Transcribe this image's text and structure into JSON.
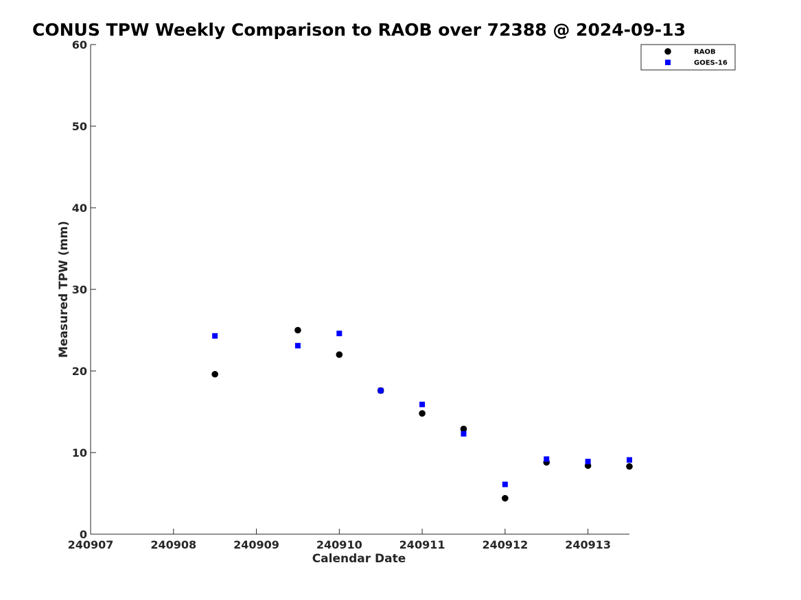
{
  "chart_data": {
    "type": "scatter",
    "title": "CONUS TPW Weekly Comparison to RAOB over 72388 @ 2024-09-13",
    "xlabel": "Calendar Date",
    "ylabel": "Measured TPW (mm)",
    "x_tick_labels": [
      "240907",
      "240908",
      "240909",
      "240910",
      "240911",
      "240912",
      "240913"
    ],
    "y_ticks": [
      0,
      10,
      20,
      30,
      40,
      50,
      60
    ],
    "xlim": [
      "2024-09-07 00:00",
      "2024-09-13 12:00"
    ],
    "ylim": [
      0,
      60
    ],
    "grid": false,
    "legend_position": "top-right",
    "series": [
      {
        "name": "RAOB",
        "marker": "circle",
        "color": "#000000",
        "points": [
          {
            "x": "2024-09-08 12:00",
            "y": 19.6
          },
          {
            "x": "2024-09-09 12:00",
            "y": 25.0
          },
          {
            "x": "2024-09-10 00:00",
            "y": 22.0
          },
          {
            "x": "2024-09-10 12:00",
            "y": 17.6
          },
          {
            "x": "2024-09-11 00:00",
            "y": 14.8
          },
          {
            "x": "2024-09-11 12:00",
            "y": 12.9
          },
          {
            "x": "2024-09-12 00:00",
            "y": 4.4
          },
          {
            "x": "2024-09-12 12:00",
            "y": 8.8
          },
          {
            "x": "2024-09-13 00:00",
            "y": 8.4
          },
          {
            "x": "2024-09-13 12:00",
            "y": 8.3
          }
        ]
      },
      {
        "name": "GOES-16",
        "marker": "square",
        "color": "#0000ff",
        "points": [
          {
            "x": "2024-09-08 12:00",
            "y": 24.3
          },
          {
            "x": "2024-09-09 12:00",
            "y": 23.1
          },
          {
            "x": "2024-09-10 00:00",
            "y": 24.6
          },
          {
            "x": "2024-09-10 12:00",
            "y": 17.6
          },
          {
            "x": "2024-09-11 00:00",
            "y": 15.9
          },
          {
            "x": "2024-09-11 12:00",
            "y": 12.3
          },
          {
            "x": "2024-09-12 00:00",
            "y": 6.1
          },
          {
            "x": "2024-09-12 12:00",
            "y": 9.2
          },
          {
            "x": "2024-09-13 00:00",
            "y": 8.9
          },
          {
            "x": "2024-09-13 12:00",
            "y": 9.1
          }
        ]
      }
    ]
  }
}
